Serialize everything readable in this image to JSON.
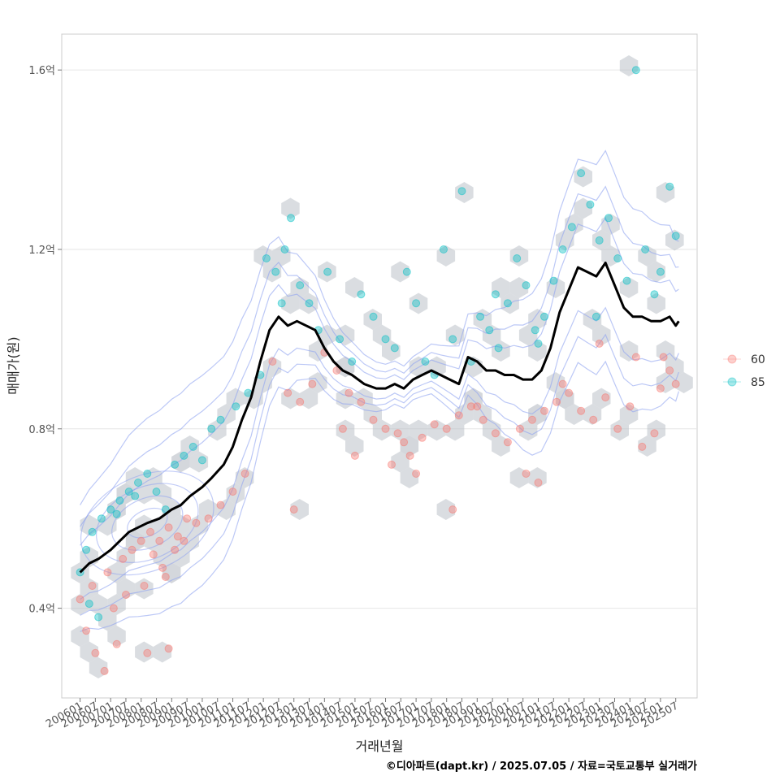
{
  "chart_data": {
    "type": "scatter",
    "xlabel": "거래년월",
    "ylabel": "매매가(원)",
    "caption": "©디아파트(dapt.kr) / 2025.07.05 / 자료=국토교통부 실거래가",
    "x_ticks": [
      "200601",
      "200607",
      "200701",
      "200707",
      "200801",
      "200807",
      "200901",
      "200907",
      "201001",
      "201007",
      "201101",
      "201107",
      "201201",
      "201207",
      "201301",
      "201307",
      "201401",
      "201407",
      "201501",
      "201507",
      "201601",
      "201607",
      "201701",
      "201707",
      "201801",
      "201807",
      "201901",
      "201907",
      "202001",
      "202007",
      "202101",
      "202107",
      "202201",
      "202207",
      "202301",
      "202307",
      "202401",
      "202407",
      "202501",
      "202507"
    ],
    "y_ticks": [
      0.4,
      0.8,
      1.2,
      1.6
    ],
    "y_tick_labels": [
      "0.4억",
      "0.8억",
      "1.2억",
      "1.6억"
    ],
    "ylim": [
      0.2,
      1.68
    ],
    "xlim_years": [
      2005.4,
      2026.2
    ],
    "grid": true,
    "legend": {
      "position": "right",
      "entries": [
        {
          "label": "60",
          "color": "#F8766D"
        },
        {
          "label": "85",
          "color": "#00BFC4"
        }
      ]
    },
    "trend_line": {
      "name": "moving average",
      "color": "#000000",
      "x": [
        2006.0,
        2006.3,
        2006.6,
        2007.0,
        2007.3,
        2007.6,
        2007.9,
        2008.2,
        2008.6,
        2009.0,
        2009.3,
        2009.6,
        2010.0,
        2010.3,
        2010.7,
        2011.0,
        2011.3,
        2011.6,
        2011.9,
        2012.2,
        2012.5,
        2012.8,
        2013.1,
        2013.4,
        2013.7,
        2014.0,
        2014.3,
        2014.6,
        2014.9,
        2015.3,
        2015.7,
        2016.0,
        2016.3,
        2016.6,
        2016.9,
        2017.2,
        2017.5,
        2017.8,
        2018.1,
        2018.4,
        2018.7,
        2019.0,
        2019.3,
        2019.6,
        2019.9,
        2020.2,
        2020.5,
        2020.8,
        2021.1,
        2021.4,
        2021.7,
        2022.0,
        2022.3,
        2022.6,
        2022.9,
        2023.2,
        2023.5,
        2023.8,
        2024.1,
        2024.4,
        2024.7,
        2025.0,
        2025.3,
        2025.5,
        2025.6
      ],
      "y": [
        0.48,
        0.5,
        0.51,
        0.53,
        0.55,
        0.57,
        0.58,
        0.59,
        0.6,
        0.62,
        0.63,
        0.65,
        0.67,
        0.69,
        0.72,
        0.76,
        0.82,
        0.87,
        0.95,
        1.02,
        1.05,
        1.03,
        1.04,
        1.03,
        1.02,
        0.98,
        0.95,
        0.93,
        0.92,
        0.9,
        0.89,
        0.89,
        0.9,
        0.89,
        0.91,
        0.92,
        0.93,
        0.92,
        0.91,
        0.9,
        0.96,
        0.95,
        0.93,
        0.93,
        0.92,
        0.92,
        0.91,
        0.91,
        0.93,
        0.98,
        1.06,
        1.11,
        1.16,
        1.15,
        1.14,
        1.17,
        1.12,
        1.07,
        1.05,
        1.05,
        1.04,
        1.04,
        1.05,
        1.03,
        1.04
      ]
    },
    "series": [
      {
        "name": "60",
        "color": "#F8766D",
        "points": [
          [
            2006.0,
            0.42
          ],
          [
            2006.2,
            0.35
          ],
          [
            2006.5,
            0.3
          ],
          [
            2006.8,
            0.26
          ],
          [
            2007.1,
            0.4
          ],
          [
            2006.4,
            0.45
          ],
          [
            2006.9,
            0.48
          ],
          [
            2007.4,
            0.51
          ],
          [
            2007.7,
            0.53
          ],
          [
            2008.0,
            0.55
          ],
          [
            2008.3,
            0.57
          ],
          [
            2008.6,
            0.55
          ],
          [
            2008.9,
            0.58
          ],
          [
            2009.2,
            0.56
          ],
          [
            2009.5,
            0.6
          ],
          [
            2009.8,
            0.59
          ],
          [
            2008.4,
            0.52
          ],
          [
            2008.7,
            0.49
          ],
          [
            2009.1,
            0.53
          ],
          [
            2009.4,
            0.55
          ],
          [
            2010.2,
            0.6
          ],
          [
            2010.6,
            0.63
          ],
          [
            2011.0,
            0.66
          ],
          [
            2011.4,
            0.7
          ],
          [
            2007.5,
            0.43
          ],
          [
            2008.1,
            0.45
          ],
          [
            2008.8,
            0.47
          ],
          [
            2008.2,
            0.3
          ],
          [
            2008.9,
            0.31
          ],
          [
            2007.2,
            0.32
          ],
          [
            2012.3,
            0.95
          ],
          [
            2012.8,
            0.88
          ],
          [
            2013.2,
            0.86
          ],
          [
            2013.6,
            0.9
          ],
          [
            2014.0,
            0.97
          ],
          [
            2014.4,
            0.93
          ],
          [
            2014.8,
            0.88
          ],
          [
            2015.2,
            0.86
          ],
          [
            2015.6,
            0.82
          ],
          [
            2016.0,
            0.8
          ],
          [
            2016.4,
            0.79
          ],
          [
            2016.8,
            0.74
          ],
          [
            2017.2,
            0.78
          ],
          [
            2017.6,
            0.81
          ],
          [
            2018.0,
            0.8
          ],
          [
            2018.4,
            0.83
          ],
          [
            2018.8,
            0.85
          ],
          [
            2019.2,
            0.82
          ],
          [
            2019.6,
            0.79
          ],
          [
            2020.0,
            0.77
          ],
          [
            2020.4,
            0.8
          ],
          [
            2020.8,
            0.82
          ],
          [
            2021.2,
            0.84
          ],
          [
            2021.6,
            0.86
          ],
          [
            2022.0,
            0.88
          ],
          [
            2022.4,
            0.84
          ],
          [
            2022.8,
            0.82
          ],
          [
            2023.2,
            0.87
          ],
          [
            2023.6,
            0.8
          ],
          [
            2024.0,
            0.85
          ],
          [
            2024.4,
            0.76
          ],
          [
            2024.8,
            0.79
          ],
          [
            2025.0,
            0.89
          ],
          [
            2025.3,
            0.93
          ],
          [
            2025.5,
            0.9
          ],
          [
            2016.2,
            0.72
          ],
          [
            2017.0,
            0.7
          ],
          [
            2018.2,
            0.62
          ],
          [
            2020.6,
            0.7
          ],
          [
            2021.0,
            0.68
          ],
          [
            2014.6,
            0.8
          ],
          [
            2013.0,
            0.62
          ],
          [
            2015.0,
            0.74
          ],
          [
            2016.6,
            0.77
          ],
          [
            2019.0,
            0.85
          ],
          [
            2021.8,
            0.9
          ],
          [
            2023.0,
            0.99
          ],
          [
            2024.2,
            0.96
          ],
          [
            2025.1,
            0.96
          ]
        ]
      },
      {
        "name": "85",
        "color": "#00BFC4",
        "points": [
          [
            2006.0,
            0.48
          ],
          [
            2006.2,
            0.53
          ],
          [
            2006.4,
            0.57
          ],
          [
            2006.7,
            0.6
          ],
          [
            2007.0,
            0.62
          ],
          [
            2007.3,
            0.64
          ],
          [
            2007.6,
            0.66
          ],
          [
            2007.9,
            0.68
          ],
          [
            2008.2,
            0.7
          ],
          [
            2008.5,
            0.66
          ],
          [
            2008.8,
            0.62
          ],
          [
            2009.1,
            0.72
          ],
          [
            2009.4,
            0.74
          ],
          [
            2009.7,
            0.76
          ],
          [
            2010.0,
            0.73
          ],
          [
            2010.3,
            0.8
          ],
          [
            2010.6,
            0.82
          ],
          [
            2006.3,
            0.41
          ],
          [
            2006.6,
            0.38
          ],
          [
            2007.2,
            0.61
          ],
          [
            2007.8,
            0.65
          ],
          [
            2011.1,
            0.85
          ],
          [
            2011.5,
            0.88
          ],
          [
            2011.9,
            0.92
          ],
          [
            2012.1,
            1.18
          ],
          [
            2012.4,
            1.15
          ],
          [
            2012.7,
            1.2
          ],
          [
            2012.9,
            1.27
          ],
          [
            2013.2,
            1.12
          ],
          [
            2013.5,
            1.08
          ],
          [
            2013.8,
            1.02
          ],
          [
            2014.1,
            1.15
          ],
          [
            2012.6,
            1.08
          ],
          [
            2014.5,
            1.0
          ],
          [
            2014.9,
            0.95
          ],
          [
            2015.2,
            1.1
          ],
          [
            2015.6,
            1.05
          ],
          [
            2016.0,
            1.0
          ],
          [
            2016.3,
            0.98
          ],
          [
            2016.7,
            1.15
          ],
          [
            2017.0,
            1.08
          ],
          [
            2017.3,
            0.95
          ],
          [
            2017.6,
            0.92
          ],
          [
            2017.9,
            1.2
          ],
          [
            2018.2,
            1.0
          ],
          [
            2018.5,
            1.33
          ],
          [
            2018.8,
            0.95
          ],
          [
            2019.1,
            1.05
          ],
          [
            2019.4,
            1.02
          ],
          [
            2019.7,
            0.98
          ],
          [
            2020.0,
            1.08
          ],
          [
            2020.3,
            1.18
          ],
          [
            2020.6,
            1.12
          ],
          [
            2020.9,
            1.02
          ],
          [
            2021.2,
            1.05
          ],
          [
            2021.5,
            1.13
          ],
          [
            2021.8,
            1.2
          ],
          [
            2022.1,
            1.25
          ],
          [
            2022.4,
            1.37
          ],
          [
            2022.7,
            1.3
          ],
          [
            2023.0,
            1.22
          ],
          [
            2023.3,
            1.27
          ],
          [
            2023.6,
            1.18
          ],
          [
            2023.9,
            1.13
          ],
          [
            2024.2,
            1.6
          ],
          [
            2024.5,
            1.2
          ],
          [
            2024.8,
            1.1
          ],
          [
            2025.0,
            1.15
          ],
          [
            2025.3,
            1.34
          ],
          [
            2025.5,
            1.23
          ],
          [
            2022.9,
            1.05
          ],
          [
            2021.0,
            0.99
          ],
          [
            2019.6,
            1.1
          ]
        ]
      }
    ]
  }
}
